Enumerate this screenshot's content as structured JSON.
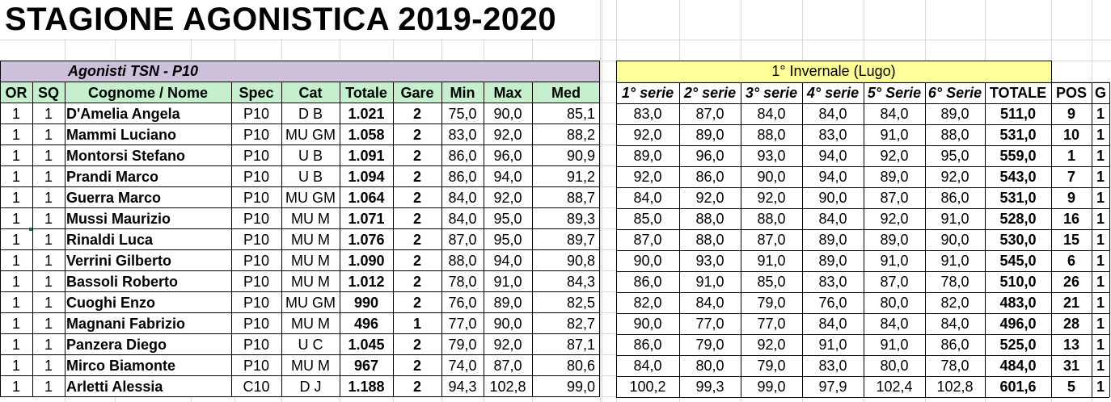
{
  "title": "STAGIONE AGONISTICA 2019-2020",
  "group_label": "Agonisti TSN - P10",
  "competition_label": "1° Invernale (Lugo)",
  "colors": {
    "group_header_bg": "#ccc0da",
    "column_header_bg": "#c6efce",
    "competition_header_bg": "#ffff99",
    "gridline": "#d9d9d9"
  },
  "left_headers": [
    "OR",
    "SQ",
    "Cognome / Nome",
    "Spec",
    "Cat",
    "Totale",
    "Gare",
    "Min",
    "Max",
    "Med"
  ],
  "right_headers": [
    "1° serie",
    "2° serie",
    "3° serie",
    "4° serie",
    "5° Serie",
    "6° Serie",
    "TOTALE",
    "POS",
    "G"
  ],
  "rows": [
    {
      "or": "1",
      "sq": "1",
      "name": "D'Amelia Angela",
      "spec": "P10",
      "cat": "D B",
      "totale": "1.021",
      "gare": "2",
      "min": "75,0",
      "max": "90,0",
      "med": "85,1",
      "s1": "83,0",
      "s2": "87,0",
      "s3": "84,0",
      "s4": "84,0",
      "s5": "84,0",
      "s6": "89,0",
      "tot": "511,0",
      "pos": "9",
      "g": "1"
    },
    {
      "or": "1",
      "sq": "1",
      "name": "Mammi Luciano",
      "spec": "P10",
      "cat": "MU GM",
      "totale": "1.058",
      "gare": "2",
      "min": "83,0",
      "max": "92,0",
      "med": "88,2",
      "s1": "92,0",
      "s2": "89,0",
      "s3": "88,0",
      "s4": "83,0",
      "s5": "91,0",
      "s6": "88,0",
      "tot": "531,0",
      "pos": "10",
      "g": "1"
    },
    {
      "or": "1",
      "sq": "1",
      "name": "Montorsi Stefano",
      "spec": "P10",
      "cat": "U B",
      "totale": "1.091",
      "gare": "2",
      "min": "86,0",
      "max": "96,0",
      "med": "90,9",
      "s1": "89,0",
      "s2": "96,0",
      "s3": "93,0",
      "s4": "94,0",
      "s5": "92,0",
      "s6": "95,0",
      "tot": "559,0",
      "pos": "1",
      "g": "1"
    },
    {
      "or": "1",
      "sq": "1",
      "name": "Prandi Marco",
      "spec": "P10",
      "cat": "U B",
      "totale": "1.094",
      "gare": "2",
      "min": "86,0",
      "max": "94,0",
      "med": "91,2",
      "s1": "92,0",
      "s2": "86,0",
      "s3": "90,0",
      "s4": "94,0",
      "s5": "89,0",
      "s6": "92,0",
      "tot": "543,0",
      "pos": "7",
      "g": "1"
    },
    {
      "or": "1",
      "sq": "1",
      "name": "Guerra Marco",
      "spec": "P10",
      "cat": "MU GM",
      "totale": "1.064",
      "gare": "2",
      "min": "84,0",
      "max": "92,0",
      "med": "88,7",
      "s1": "84,0",
      "s2": "92,0",
      "s3": "92,0",
      "s4": "90,0",
      "s5": "87,0",
      "s6": "86,0",
      "tot": "531,0",
      "pos": "9",
      "g": "1"
    },
    {
      "or": "1",
      "sq": "1",
      "name": "Mussi Maurizio",
      "spec": "P10",
      "cat": "MU M",
      "totale": "1.071",
      "gare": "2",
      "min": "84,0",
      "max": "95,0",
      "med": "89,3",
      "s1": "85,0",
      "s2": "88,0",
      "s3": "88,0",
      "s4": "84,0",
      "s5": "92,0",
      "s6": "91,0",
      "tot": "528,0",
      "pos": "16",
      "g": "1"
    },
    {
      "or": "1",
      "sq": "1",
      "name": "Rinaldi Luca",
      "spec": "P10",
      "cat": "MU M",
      "totale": "1.076",
      "gare": "2",
      "min": "87,0",
      "max": "95,0",
      "med": "89,7",
      "s1": "87,0",
      "s2": "88,0",
      "s3": "87,0",
      "s4": "89,0",
      "s5": "89,0",
      "s6": "90,0",
      "tot": "530,0",
      "pos": "15",
      "g": "1"
    },
    {
      "or": "1",
      "sq": "1",
      "name": "Verrini Gilberto",
      "spec": "P10",
      "cat": "MU M",
      "totale": "1.090",
      "gare": "2",
      "min": "88,0",
      "max": "94,0",
      "med": "90,8",
      "s1": "90,0",
      "s2": "93,0",
      "s3": "91,0",
      "s4": "89,0",
      "s5": "91,0",
      "s6": "91,0",
      "tot": "545,0",
      "pos": "6",
      "g": "1"
    },
    {
      "or": "1",
      "sq": "1",
      "name": "Bassoli Roberto",
      "spec": "P10",
      "cat": "MU M",
      "totale": "1.012",
      "gare": "2",
      "min": "78,0",
      "max": "91,0",
      "med": "84,3",
      "s1": "86,0",
      "s2": "91,0",
      "s3": "85,0",
      "s4": "83,0",
      "s5": "87,0",
      "s6": "78,0",
      "tot": "510,0",
      "pos": "26",
      "g": "1"
    },
    {
      "or": "1",
      "sq": "1",
      "name": "Cuoghi Enzo",
      "spec": "P10",
      "cat": "MU GM",
      "totale": "990",
      "gare": "2",
      "min": "76,0",
      "max": "89,0",
      "med": "82,5",
      "s1": "82,0",
      "s2": "84,0",
      "s3": "79,0",
      "s4": "76,0",
      "s5": "80,0",
      "s6": "82,0",
      "tot": "483,0",
      "pos": "21",
      "g": "1"
    },
    {
      "or": "1",
      "sq": "1",
      "name": "Magnani Fabrizio",
      "spec": "P10",
      "cat": "MU M",
      "totale": "496",
      "gare": "1",
      "min": "77,0",
      "max": "90,0",
      "med": "82,7",
      "s1": "90,0",
      "s2": "77,0",
      "s3": "77,0",
      "s4": "84,0",
      "s5": "84,0",
      "s6": "84,0",
      "tot": "496,0",
      "pos": "28",
      "g": "1"
    },
    {
      "or": "1",
      "sq": "1",
      "name": "Panzera Diego",
      "spec": "P10",
      "cat": "U C",
      "totale": "1.045",
      "gare": "2",
      "min": "79,0",
      "max": "92,0",
      "med": "87,1",
      "s1": "86,0",
      "s2": "79,0",
      "s3": "92,0",
      "s4": "91,0",
      "s5": "91,0",
      "s6": "86,0",
      "tot": "525,0",
      "pos": "13",
      "g": "1"
    },
    {
      "or": "1",
      "sq": "1",
      "name": "Mirco Biamonte",
      "spec": "P10",
      "cat": "MU M",
      "totale": "967",
      "gare": "2",
      "min": "74,0",
      "max": "87,0",
      "med": "80,6",
      "s1": "84,0",
      "s2": "80,0",
      "s3": "79,0",
      "s4": "83,0",
      "s5": "80,0",
      "s6": "78,0",
      "tot": "484,0",
      "pos": "31",
      "g": "1"
    },
    {
      "or": "1",
      "sq": "1",
      "name": "Arletti Alessia",
      "spec": "C10",
      "cat": "D J",
      "totale": "1.188",
      "gare": "2",
      "min": "94,3",
      "max": "102,8",
      "med": "99,0",
      "s1": "100,2",
      "s2": "99,3",
      "s3": "99,0",
      "s4": "97,9",
      "s5": "102,4",
      "s6": "102,8",
      "tot": "601,6",
      "pos": "5",
      "g": "1"
    }
  ]
}
